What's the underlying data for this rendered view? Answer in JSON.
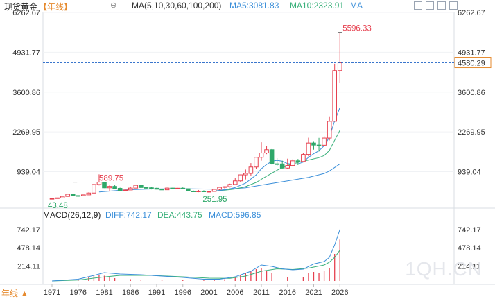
{
  "header": {
    "symbol": "现货黄金",
    "period": "【年线】",
    "ma_label": "MA(5,10,30,60,100,200)",
    "ma5": "MA5:3081.83",
    "ma10": "MA10:2323.91",
    "ma_more": "MA"
  },
  "macd_header": {
    "label": "MACD(26,12,9)",
    "diff": "DIFF:742.17",
    "dea": "DEA:443.75",
    "macd": "MACD:596.85"
  },
  "footer": {
    "period_button": "年线 ▲"
  },
  "watermark": "1QH.CN",
  "colors": {
    "up": "#e6404f",
    "down": "#2fa86a",
    "ma5": "#3b8fd9",
    "ma10": "#39b07a",
    "ma30": "#3b8fd9",
    "label_up": "#e6404f",
    "label_down": "#2fa86a",
    "current": "#1f63c6"
  },
  "chart_data": [
    {
      "type": "candlestick",
      "title": "现货黄金【年线】",
      "x_tick_labels": [
        "1971",
        "1976",
        "1981",
        "1986",
        "1991",
        "1996",
        "2001",
        "2006",
        "2011",
        "2016",
        "2021",
        "2026"
      ],
      "y_tick_labels": [
        "6262.67",
        "4931.77",
        "3600.86",
        "2269.95",
        "939.04"
      ],
      "ylim": [
        0,
        6262.67
      ],
      "annotations": {
        "high": "5596.33",
        "high_left": "589.75",
        "low_mid": "251.95",
        "low_start": "43.48",
        "current": "4580.29"
      },
      "candles": [
        {
          "year": 1971,
          "open": 37,
          "close": 43.5,
          "high": 44,
          "low": 37
        },
        {
          "year": 1972,
          "open": 43.5,
          "close": 64,
          "high": 70,
          "low": 43
        },
        {
          "year": 1973,
          "open": 64,
          "close": 112,
          "high": 127,
          "low": 63
        },
        {
          "year": 1974,
          "open": 112,
          "close": 186,
          "high": 195,
          "low": 112
        },
        {
          "year": 1975,
          "open": 186,
          "close": 140,
          "high": 186,
          "low": 128
        },
        {
          "year": 1976,
          "open": 140,
          "close": 134,
          "high": 141,
          "low": 102
        },
        {
          "year": 1977,
          "open": 134,
          "close": 165,
          "high": 169,
          "low": 130
        },
        {
          "year": 1978,
          "open": 165,
          "close": 226,
          "high": 245,
          "low": 161
        },
        {
          "year": 1979,
          "open": 226,
          "close": 512,
          "high": 530,
          "low": 216
        },
        {
          "year": 1980,
          "open": 512,
          "close": 590,
          "high": 850,
          "low": 481
        },
        {
          "year": 1981,
          "open": 590,
          "close": 400,
          "high": 600,
          "low": 391
        },
        {
          "year": 1982,
          "open": 400,
          "close": 448,
          "high": 481,
          "low": 297
        },
        {
          "year": 1983,
          "open": 448,
          "close": 382,
          "high": 509,
          "low": 374
        },
        {
          "year": 1984,
          "open": 382,
          "close": 309,
          "high": 405,
          "low": 307
        },
        {
          "year": 1985,
          "open": 309,
          "close": 327,
          "high": 340,
          "low": 285
        },
        {
          "year": 1986,
          "open": 327,
          "close": 391,
          "high": 442,
          "low": 326
        },
        {
          "year": 1987,
          "open": 391,
          "close": 484,
          "high": 502,
          "low": 390
        },
        {
          "year": 1988,
          "open": 484,
          "close": 410,
          "high": 485,
          "low": 395
        },
        {
          "year": 1989,
          "open": 410,
          "close": 401,
          "high": 418,
          "low": 356
        },
        {
          "year": 1990,
          "open": 401,
          "close": 386,
          "high": 423,
          "low": 345
        },
        {
          "year": 1991,
          "open": 386,
          "close": 353,
          "high": 403,
          "low": 344
        },
        {
          "year": 1992,
          "open": 353,
          "close": 333,
          "high": 360,
          "low": 330
        },
        {
          "year": 1993,
          "open": 333,
          "close": 391,
          "high": 407,
          "low": 326
        },
        {
          "year": 1994,
          "open": 391,
          "close": 383,
          "high": 397,
          "low": 370
        },
        {
          "year": 1995,
          "open": 383,
          "close": 387,
          "high": 397,
          "low": 372
        },
        {
          "year": 1996,
          "open": 387,
          "close": 369,
          "high": 415,
          "low": 367
        },
        {
          "year": 1997,
          "open": 369,
          "close": 290,
          "high": 368,
          "low": 283
        },
        {
          "year": 1998,
          "open": 290,
          "close": 288,
          "high": 313,
          "low": 273
        },
        {
          "year": 1999,
          "open": 288,
          "close": 290,
          "high": 326,
          "low": 252
        },
        {
          "year": 2000,
          "open": 290,
          "close": 272,
          "high": 316,
          "low": 263
        },
        {
          "year": 2001,
          "open": 272,
          "close": 279,
          "high": 293,
          "low": 256
        },
        {
          "year": 2002,
          "open": 279,
          "close": 347,
          "high": 350,
          "low": 278
        },
        {
          "year": 2003,
          "open": 347,
          "close": 416,
          "high": 417,
          "low": 320
        },
        {
          "year": 2004,
          "open": 416,
          "close": 438,
          "high": 455,
          "low": 375
        },
        {
          "year": 2005,
          "open": 438,
          "close": 513,
          "high": 538,
          "low": 411
        },
        {
          "year": 2006,
          "open": 513,
          "close": 632,
          "high": 730,
          "low": 513
        },
        {
          "year": 2007,
          "open": 632,
          "close": 834,
          "high": 845,
          "low": 603
        },
        {
          "year": 2008,
          "open": 834,
          "close": 882,
          "high": 1011,
          "low": 681
        },
        {
          "year": 2009,
          "open": 882,
          "close": 1096,
          "high": 1227,
          "low": 802
        },
        {
          "year": 2010,
          "open": 1096,
          "close": 1421,
          "high": 1431,
          "low": 1044
        },
        {
          "year": 2011,
          "open": 1421,
          "close": 1565,
          "high": 1921,
          "low": 1308
        },
        {
          "year": 2012,
          "open": 1565,
          "close": 1675,
          "high": 1796,
          "low": 1527
        },
        {
          "year": 2013,
          "open": 1675,
          "close": 1202,
          "high": 1696,
          "low": 1180
        },
        {
          "year": 2014,
          "open": 1202,
          "close": 1199,
          "high": 1392,
          "low": 1131
        },
        {
          "year": 2015,
          "open": 1199,
          "close": 1061,
          "high": 1307,
          "low": 1046
        },
        {
          "year": 2016,
          "open": 1061,
          "close": 1146,
          "high": 1375,
          "low": 1046
        },
        {
          "year": 2017,
          "open": 1146,
          "close": 1303,
          "high": 1358,
          "low": 1146
        },
        {
          "year": 2018,
          "open": 1303,
          "close": 1282,
          "high": 1366,
          "low": 1160
        },
        {
          "year": 2019,
          "open": 1282,
          "close": 1517,
          "high": 1557,
          "low": 1266
        },
        {
          "year": 2020,
          "open": 1517,
          "close": 1898,
          "high": 2075,
          "low": 1451
        },
        {
          "year": 2021,
          "open": 1898,
          "close": 1829,
          "high": 1959,
          "low": 1677
        },
        {
          "year": 2022,
          "open": 1829,
          "close": 1824,
          "high": 2070,
          "low": 1615
        },
        {
          "year": 2023,
          "open": 1824,
          "close": 2063,
          "high": 2135,
          "low": 1805
        },
        {
          "year": 2024,
          "open": 2063,
          "close": 2624,
          "high": 2790,
          "low": 1984
        },
        {
          "year": 2025,
          "open": 2624,
          "close": 4320,
          "high": 4550,
          "low": 2614
        },
        {
          "year": 2026,
          "open": 4320,
          "close": 4580.29,
          "high": 5596.33,
          "low": 3900
        }
      ],
      "ma5": [
        [
          2002,
          290
        ],
        [
          2004,
          330
        ],
        [
          2006,
          410
        ],
        [
          2008,
          560
        ],
        [
          2010,
          830
        ],
        [
          2011,
          1040
        ],
        [
          2012,
          1180
        ],
        [
          2013,
          1290
        ],
        [
          2014,
          1320
        ],
        [
          2015,
          1290
        ],
        [
          2016,
          1210
        ],
        [
          2017,
          1190
        ],
        [
          2018,
          1200
        ],
        [
          2019,
          1260
        ],
        [
          2020,
          1420
        ],
        [
          2021,
          1540
        ],
        [
          2022,
          1640
        ],
        [
          2023,
          1810
        ],
        [
          2024,
          2090
        ],
        [
          2025,
          2640
        ],
        [
          2026,
          3081.83
        ]
      ],
      "ma10": [
        [
          2002,
          300
        ],
        [
          2004,
          320
        ],
        [
          2006,
          360
        ],
        [
          2008,
          440
        ],
        [
          2010,
          580
        ],
        [
          2012,
          790
        ],
        [
          2014,
          990
        ],
        [
          2016,
          1150
        ],
        [
          2018,
          1250
        ],
        [
          2020,
          1330
        ],
        [
          2022,
          1410
        ],
        [
          2023,
          1480
        ],
        [
          2024,
          1650
        ],
        [
          2025,
          1990
        ],
        [
          2026,
          2323.91
        ]
      ],
      "ma30": [
        [
          1980,
          260
        ],
        [
          1985,
          330
        ],
        [
          1990,
          360
        ],
        [
          1995,
          370
        ],
        [
          2000,
          360
        ],
        [
          2004,
          350
        ],
        [
          2008,
          400
        ],
        [
          2012,
          520
        ],
        [
          2016,
          630
        ],
        [
          2020,
          750
        ],
        [
          2023,
          880
        ],
        [
          2024,
          960
        ],
        [
          2025,
          1080
        ],
        [
          2026,
          1200
        ]
      ]
    },
    {
      "type": "macd",
      "title": "MACD(26,12,9)",
      "y_tick_labels": [
        "742.17",
        "478.14",
        "214.11"
      ],
      "ylim": [
        -30,
        830
      ],
      "diff_last": 742.17,
      "dea_last": 443.75,
      "macd_last": 596.85,
      "diff": [
        [
          1971,
          0
        ],
        [
          1976,
          25
        ],
        [
          1979,
          80
        ],
        [
          1981,
          120
        ],
        [
          1984,
          100
        ],
        [
          1988,
          90
        ],
        [
          1992,
          70
        ],
        [
          1996,
          50
        ],
        [
          2000,
          25
        ],
        [
          2003,
          25
        ],
        [
          2006,
          60
        ],
        [
          2009,
          140
        ],
        [
          2011,
          230
        ],
        [
          2013,
          210
        ],
        [
          2015,
          175
        ],
        [
          2017,
          160
        ],
        [
          2019,
          170
        ],
        [
          2021,
          245
        ],
        [
          2023,
          280
        ],
        [
          2024,
          340
        ],
        [
          2025,
          520
        ],
        [
          2026,
          742.17
        ]
      ],
      "dea": [
        [
          1971,
          0
        ],
        [
          1976,
          12
        ],
        [
          1980,
          50
        ],
        [
          1984,
          80
        ],
        [
          1990,
          80
        ],
        [
          1996,
          60
        ],
        [
          2001,
          40
        ],
        [
          2005,
          38
        ],
        [
          2008,
          70
        ],
        [
          2011,
          140
        ],
        [
          2014,
          175
        ],
        [
          2017,
          165
        ],
        [
          2020,
          185
        ],
        [
          2023,
          230
        ],
        [
          2024,
          270
        ],
        [
          2025,
          340
        ],
        [
          2026,
          443.75
        ]
      ],
      "macd_bars": [
        [
          1976,
          30
        ],
        [
          1978,
          55
        ],
        [
          1979,
          80
        ],
        [
          1980,
          90
        ],
        [
          1981,
          75
        ],
        [
          1982,
          55
        ],
        [
          1983,
          40
        ],
        [
          1986,
          25
        ],
        [
          1988,
          20
        ],
        [
          1992,
          12
        ],
        [
          1996,
          10
        ],
        [
          2000,
          8
        ],
        [
          2002,
          12
        ],
        [
          2004,
          25
        ],
        [
          2006,
          50
        ],
        [
          2007,
          80
        ],
        [
          2008,
          110
        ],
        [
          2009,
          140
        ],
        [
          2010,
          170
        ],
        [
          2011,
          185
        ],
        [
          2012,
          150
        ],
        [
          2013,
          110
        ],
        [
          2016,
          60
        ],
        [
          2019,
          55
        ],
        [
          2020,
          110
        ],
        [
          2021,
          130
        ],
        [
          2022,
          120
        ],
        [
          2023,
          150
        ],
        [
          2024,
          180
        ],
        [
          2025,
          390
        ],
        [
          2026,
          596.85
        ]
      ]
    }
  ]
}
